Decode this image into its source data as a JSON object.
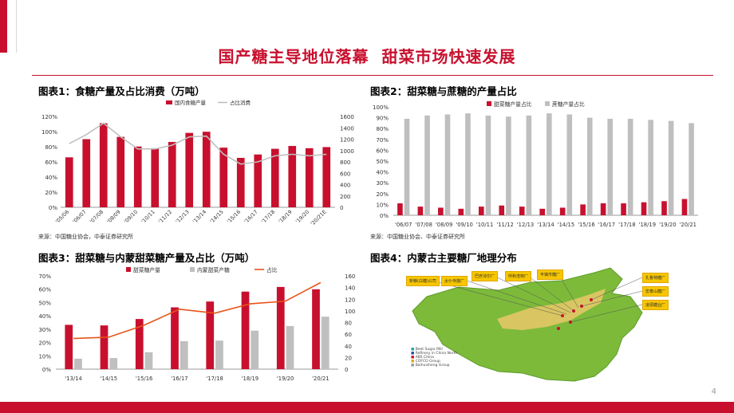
{
  "page": {
    "title": "国产糖主导地位落幕  甜菜市场快速发展",
    "page_number": "4"
  },
  "panels": {
    "p1": {
      "title": "图表1：食糖产量及占比消费（万吨）",
      "source": "来源：中国糖业协会，中泰证券研究所"
    },
    "p2": {
      "title": "图表2：甜菜糖与蔗糖的产量占比",
      "source": "来源：中国糖业协会、中泰证券研究所"
    },
    "p3": {
      "title": "图表3：甜菜糖与内蒙甜菜糖产量及占比（万吨）"
    },
    "p4": {
      "title": "图表4：内蒙古主要糖厂地理分布",
      "map_labels": [
        "新粮(白糖)公司",
        "太仆寺旗厂",
        "巴彦淖尔厂",
        "呼和浩特厂",
        "丰镇市糖厂",
        "扎鲁特糖厂",
        "宏泰山糖厂",
        "凌源糖业厂"
      ],
      "legend": [
        "Beet Sugar Mill",
        "Refinery in China North",
        "ABS China",
        "COFCO Group",
        "Baihuisheng Group"
      ]
    }
  },
  "colors": {
    "red": "#c8102e",
    "gray": "#bfbfbf",
    "orange": "#e8531a",
    "map_fill": "#7dba3a"
  },
  "chart_data": [
    {
      "type": "bar",
      "categories": [
        "'05/06",
        "'06/07",
        "'07/08",
        "'08/09",
        "'09/10",
        "'10/11",
        "'11/12",
        "'12/13",
        "'13/14",
        "'14/15",
        "'15/16",
        "'16/17",
        "'17/18",
        "'18/19",
        "'19/20",
        "'20/21E"
      ],
      "series": [
        {
          "name": "国内食糖产量",
          "type": "bar",
          "axis": "right",
          "values": [
            880,
            1200,
            1480,
            1240,
            1070,
            1040,
            1150,
            1310,
            1330,
            1050,
            870,
            930,
            1030,
            1080,
            1040,
            1060
          ]
        },
        {
          "name": "占比消费",
          "type": "line",
          "axis": "left",
          "values": [
            0.84,
            0.96,
            1.11,
            0.93,
            0.77,
            0.77,
            0.82,
            0.93,
            0.94,
            0.7,
            0.57,
            0.6,
            0.68,
            0.7,
            0.68,
            0.7
          ]
        }
      ],
      "left_ticks": [
        "0%",
        "20%",
        "40%",
        "60%",
        "80%",
        "100%",
        "120%"
      ],
      "right_ticks": [
        "0",
        "200",
        "400",
        "600",
        "800",
        "1000",
        "1200",
        "1400",
        "1600"
      ],
      "ylim_left": [
        0,
        1.2
      ],
      "ylim_right": [
        0,
        1600
      ]
    },
    {
      "type": "bar",
      "categories": [
        "'06/07",
        "'07/08",
        "'08/09",
        "'09/10",
        "'10/11",
        "'11/12",
        "'12/13",
        "'13/14",
        "'14/15",
        "'15/16",
        "'16/17",
        "'17/18",
        "'18/19",
        "'19/20",
        "'20/21"
      ],
      "series": [
        {
          "name": "甜菜糖产量占比",
          "values": [
            0.11,
            0.08,
            0.07,
            0.06,
            0.08,
            0.09,
            0.08,
            0.06,
            0.07,
            0.1,
            0.11,
            0.11,
            0.12,
            0.13,
            0.15
          ]
        },
        {
          "name": "蔗糖产量占比",
          "values": [
            0.89,
            0.92,
            0.93,
            0.94,
            0.92,
            0.91,
            0.92,
            0.94,
            0.93,
            0.9,
            0.89,
            0.89,
            0.88,
            0.87,
            0.85
          ]
        }
      ],
      "ticks": [
        "0%",
        "10%",
        "20%",
        "30%",
        "40%",
        "50%",
        "60%",
        "70%",
        "80%",
        "90%",
        "100%"
      ],
      "ylim": [
        0,
        1
      ]
    },
    {
      "type": "bar",
      "categories": [
        "'13/14",
        "'14/15",
        "'15/16",
        "'16/17",
        "'17/18",
        "'18/19",
        "'19/20",
        "'20/21"
      ],
      "series": [
        {
          "name": "甜菜糖产量",
          "type": "bar",
          "axis": "right",
          "values": [
            76,
            75,
            86,
            106,
            116,
            133,
            141,
            137
          ]
        },
        {
          "name": "内蒙甜菜产糖",
          "type": "bar",
          "axis": "right",
          "values": [
            18,
            19,
            29,
            48,
            49,
            66,
            74,
            90
          ]
        },
        {
          "name": "占比",
          "type": "line",
          "axis": "left",
          "values": [
            0.23,
            0.24,
            0.33,
            0.45,
            0.42,
            0.49,
            0.51,
            0.65
          ]
        }
      ],
      "left_ticks": [
        "0%",
        "10%",
        "20%",
        "30%",
        "40%",
        "50%",
        "60%",
        "70%"
      ],
      "right_ticks": [
        "0",
        "20",
        "40",
        "60",
        "80",
        "100",
        "120",
        "140",
        "160"
      ],
      "ylim_left": [
        0,
        0.7
      ],
      "ylim_right": [
        0,
        160
      ]
    }
  ]
}
